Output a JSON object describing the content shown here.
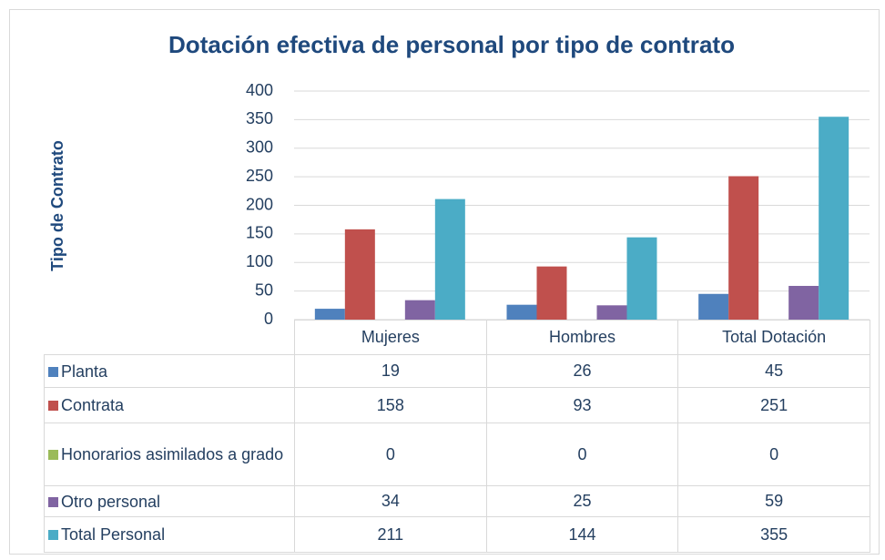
{
  "chart_data": {
    "type": "bar",
    "title": "Dotación efectiva de personal por tipo de contrato",
    "y_label": "Tipo de Contrato",
    "categories": [
      "Mujeres",
      "Hombres",
      "Total Dotación"
    ],
    "series": [
      {
        "name": "Planta",
        "color": "#4f81bd",
        "values": [
          19,
          26,
          45
        ]
      },
      {
        "name": "Contrata",
        "color": "#c0504d",
        "values": [
          158,
          93,
          251
        ]
      },
      {
        "name": "Honorarios asimilados a grado",
        "color": "#9bbb59",
        "values": [
          0,
          0,
          0
        ]
      },
      {
        "name": "Otro personal",
        "color": "#8064a2",
        "values": [
          34,
          25,
          59
        ]
      },
      {
        "name": "Total Personal",
        "color": "#4bacc6",
        "values": [
          211,
          144,
          355
        ]
      }
    ],
    "ylim": [
      0,
      400
    ],
    "yticks": [
      0,
      50,
      100,
      150,
      200,
      250,
      300,
      350,
      400
    ],
    "grid": true
  }
}
